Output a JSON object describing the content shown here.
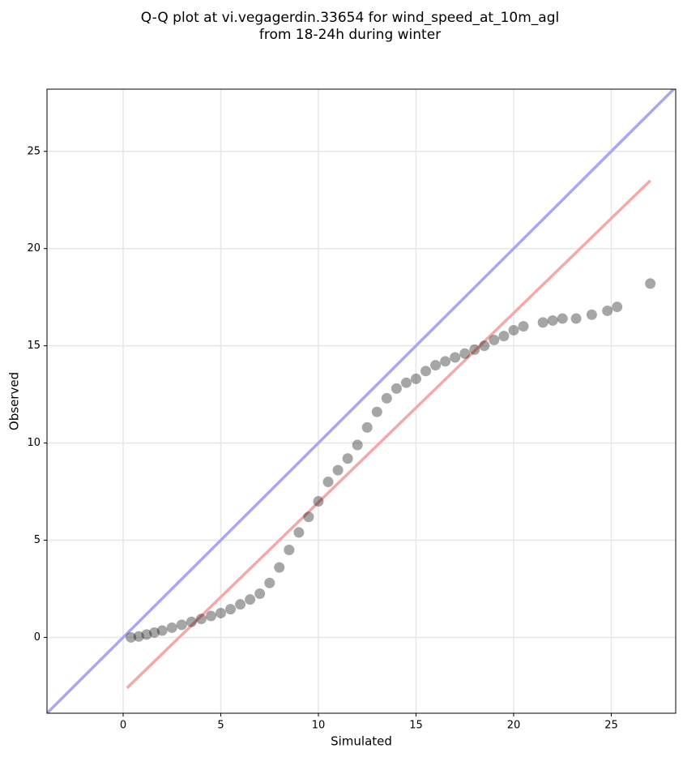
{
  "chart_data": {
    "type": "scatter",
    "title": [
      "Q-Q plot at vi.vegagerdin.33654 for wind_speed_at_10m_agl",
      "from 18-24h during winter"
    ],
    "x_label": "Simulated",
    "y_label": "Observed",
    "xlim": [
      -3.9,
      28.3
    ],
    "ylim": [
      -3.9,
      28.2
    ],
    "xticks": [
      0,
      5,
      10,
      15,
      20,
      25
    ],
    "yticks": [
      0,
      5,
      10,
      15,
      20,
      25
    ],
    "grid": true,
    "color": "#000000",
    "x": [
      0.4,
      0.8,
      1.2,
      1.6,
      2,
      2.5,
      3,
      3.5,
      4,
      4.5,
      5,
      5.5,
      6,
      6.5,
      7,
      7.5,
      8,
      8.5,
      9,
      9.5,
      10,
      10.5,
      11,
      11.5,
      12,
      12.5,
      13,
      13.5,
      14,
      14.5,
      15,
      15.5,
      16,
      16.5,
      17,
      17.5,
      18,
      18.5,
      19,
      19.5,
      20,
      20.5,
      21.5,
      22,
      22.5,
      23.2,
      24,
      24.8,
      25.3,
      27
    ],
    "values": [
      0,
      0.05,
      0.15,
      0.25,
      0.35,
      0.5,
      0.65,
      0.8,
      0.95,
      1.1,
      1.25,
      1.45,
      1.7,
      1.95,
      2.25,
      2.8,
      3.6,
      4.5,
      5.4,
      6.2,
      7.0,
      8.0,
      8.6,
      9.2,
      9.9,
      10.8,
      11.6,
      12.3,
      12.8,
      13.1,
      13.3,
      13.7,
      14.0,
      14.2,
      14.4,
      14.6,
      14.8,
      15.0,
      15.3,
      15.5,
      15.8,
      16.0,
      16.2,
      16.3,
      16.4,
      16.4,
      16.6,
      16.8,
      17.0,
      18.2
    ],
    "lines": [
      {
        "color": "#a8a8f2",
        "x": [
          -3.9,
          28.3
        ],
        "values": [
          -3.9,
          28.3
        ]
      },
      {
        "color": "#f5a8a8",
        "x": [
          0.2,
          27
        ],
        "values": [
          -2.6,
          23.5
        ]
      }
    ]
  }
}
